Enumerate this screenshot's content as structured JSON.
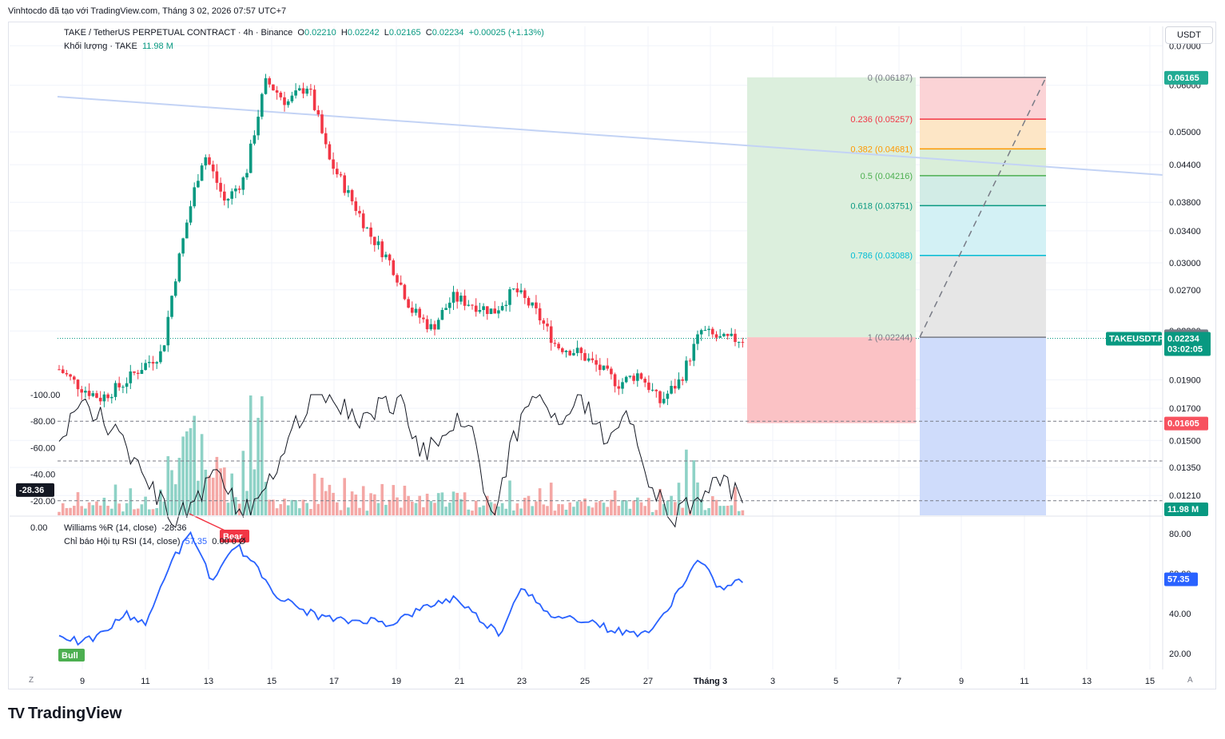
{
  "caption": "Vinhtocdo đã tạo với TradingView.com, Tháng 3 02, 2026 07:57 UTC+7",
  "legend": {
    "symbol": "TAKE / TetherUS PERPETUAL CONTRACT · 4h · Binance",
    "o_label": "O",
    "o": "0.02210",
    "h_label": "H",
    "h": "0.02242",
    "l_label": "L",
    "l": "0.02165",
    "c_label": "C",
    "c": "0.02234",
    "change": "+0.00025 (+1.13%)",
    "volume_label": "Khối lượng · TAKE",
    "volume": "11.98 M"
  },
  "indicator_legend": {
    "wr_name": "Williams %R (14, close)",
    "wr_value": "-28.36",
    "rsi_name": "Chỉ báo Hội tụ RSI (14, close)",
    "rsi_value": "57.35",
    "rsi_extra": "0.00  0  Ø"
  },
  "currency_button": "USDT",
  "footer_logo": "TradingView",
  "footer_mark": "TV",
  "z_button": "Z",
  "a_button": "A",
  "colors": {
    "up": "#089981",
    "down": "#f23645",
    "up_vol": "#8ed2c6",
    "down_vol": "#f4a7a5",
    "trendline": "#c3d3f5",
    "rsi": "#2962ff",
    "wr": "#131722",
    "green_zone": "#dcefdd",
    "red_zone": "#fbc2c5",
    "blue_zone": "#cfdcfb"
  },
  "chart_data": [
    {
      "type": "candlestick",
      "title": "TAKE / TetherUS PERPETUAL CONTRACT · 4h · Binance",
      "scale": "log",
      "ylim": [
        0.0112,
        0.0755
      ],
      "price_ticks": [
        "0.07000",
        "0.06000",
        "0.05000",
        "0.04400",
        "0.03800",
        "0.03400",
        "0.03000",
        "0.02700",
        "0.02300",
        "0.01900",
        "0.01700",
        "0.01500",
        "0.01350",
        "0.01210"
      ],
      "x_ticks": [
        "9",
        "11",
        "13",
        "15",
        "17",
        "19",
        "21",
        "23",
        "25",
        "27",
        "Tháng 3",
        "3",
        "5",
        "7",
        "9",
        "11",
        "13",
        "15"
      ],
      "current_price": "0.02234",
      "current_symbol": "TAKEUSDT.P",
      "countdown": "03:02:05",
      "high_tag": "0.02242",
      "target_tag": "0.06165",
      "stop_tag": "0.01605",
      "volume_tag": "11.98 M",
      "anchors": [
        0.0198,
        0.0185,
        0.0177,
        0.0186,
        0.02,
        0.0212,
        0.033,
        0.046,
        0.038,
        0.042,
        0.061,
        0.056,
        0.06,
        0.045,
        0.039,
        0.0335,
        0.03,
        0.025,
        0.0232,
        0.0262,
        0.0255,
        0.0248,
        0.027,
        0.0248,
        0.0217,
        0.0212,
        0.02,
        0.0187,
        0.0195,
        0.0174,
        0.019,
        0.023,
        0.0222,
        0.0223
      ],
      "fib_levels": [
        {
          "label": "0 (0.06187)",
          "price": 0.06187,
          "color": "#787b86"
        },
        {
          "label": "0.236 (0.05257)",
          "price": 0.05257,
          "color": "#f23645"
        },
        {
          "label": "0.382 (0.04681)",
          "price": 0.04681,
          "color": "#ff9800"
        },
        {
          "label": "0.5 (0.04216)",
          "price": 0.04216,
          "color": "#4caf50"
        },
        {
          "label": "0.618 (0.03751)",
          "price": 0.03751,
          "color": "#089981"
        },
        {
          "label": "0.786 (0.03088)",
          "price": 0.03088,
          "color": "#00bcd4"
        },
        {
          "label": "1 (0.02244)",
          "price": 0.02244,
          "color": "#787b86"
        }
      ]
    },
    {
      "type": "line",
      "title": "Williams %R (14, close) / Chỉ báo Hội tụ RSI (14, close)",
      "left_ticks": [
        "0.00",
        "-20.00",
        "-40.00",
        "-60.00",
        "-80.00",
        "-100.00"
      ],
      "right_ticks": [
        "80.00",
        "60.00",
        "40.00",
        "20.00"
      ],
      "wr_current": "-28.36",
      "rsi_current": "57.35",
      "bull_label": "Bull",
      "bear_label": "Bear",
      "wr_anchors": [
        -60,
        -95,
        -80,
        -60,
        -30,
        -5,
        -20,
        -45,
        -10,
        -20,
        -70,
        -95,
        -100,
        -80,
        -90,
        -95,
        -55,
        -75,
        -85,
        -3,
        -70,
        -100,
        -85,
        -95,
        -65,
        -90,
        -30,
        -5,
        -25,
        -35,
        -20
      ],
      "rsi_anchors": [
        30,
        25,
        30,
        40,
        35,
        65,
        80,
        55,
        75,
        62,
        48,
        42,
        38,
        36,
        37,
        35,
        40,
        45,
        48,
        38,
        30,
        55,
        40,
        38,
        37,
        32,
        30,
        32,
        50,
        67,
        52,
        57
      ]
    }
  ]
}
